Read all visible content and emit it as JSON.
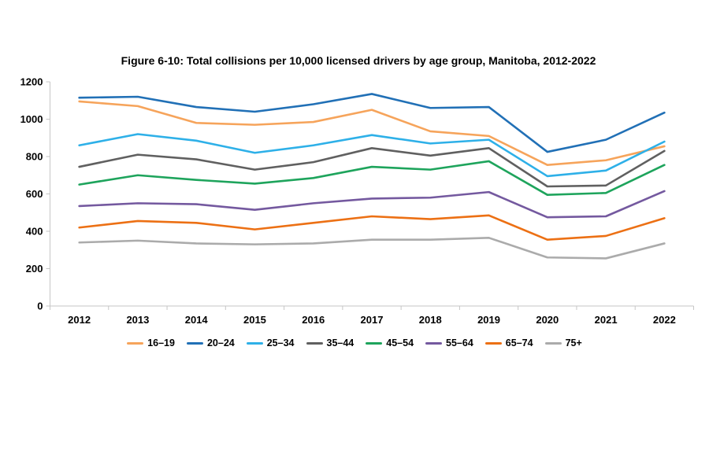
{
  "figure": {
    "title": "Figure 6-10: Total collisions per 10,000 licensed drivers by age group, Manitoba, 2012-2022"
  },
  "chart_data": {
    "type": "line",
    "title": "Figure 6-10: Total collisions per 10,000 licensed drivers by age group, Manitoba, 2012-2022",
    "x": [
      "2012",
      "2013",
      "2014",
      "2015",
      "2016",
      "2017",
      "2018",
      "2019",
      "2020",
      "2021",
      "2022"
    ],
    "xlabel": "",
    "ylabel": "",
    "ylim": [
      0,
      1200
    ],
    "ytick_step": 200,
    "ytick_labels": [
      "0",
      "200",
      "400",
      "600",
      "800",
      "1000",
      "1200"
    ],
    "grid": false,
    "legend_position": "bottom",
    "axis_color": "#c6c6c6",
    "text_color": "#000000",
    "background_color": "#ffffff",
    "series": [
      {
        "name": "16–19",
        "color": "#f6a45b",
        "values": [
          1095,
          1070,
          980,
          970,
          985,
          1050,
          935,
          910,
          755,
          780,
          855
        ]
      },
      {
        "name": "20–24",
        "color": "#2170b6",
        "values": [
          1115,
          1120,
          1065,
          1040,
          1080,
          1135,
          1060,
          1065,
          825,
          890,
          1035
        ]
      },
      {
        "name": "25–34",
        "color": "#2eb0e8",
        "values": [
          860,
          920,
          885,
          820,
          860,
          915,
          870,
          890,
          695,
          725,
          880
        ]
      },
      {
        "name": "35–44",
        "color": "#606060",
        "values": [
          745,
          810,
          785,
          730,
          770,
          845,
          805,
          845,
          640,
          645,
          830
        ]
      },
      {
        "name": "45–54",
        "color": "#1ea45c",
        "values": [
          650,
          700,
          675,
          655,
          685,
          745,
          730,
          775,
          595,
          605,
          755
        ]
      },
      {
        "name": "55–64",
        "color": "#74599f",
        "values": [
          535,
          550,
          545,
          515,
          550,
          575,
          580,
          610,
          475,
          480,
          615
        ]
      },
      {
        "name": "65–74",
        "color": "#ec7014",
        "values": [
          420,
          455,
          445,
          410,
          445,
          480,
          465,
          485,
          355,
          375,
          470
        ]
      },
      {
        "name": "75+",
        "color": "#ababab",
        "values": [
          340,
          350,
          335,
          330,
          335,
          355,
          355,
          365,
          260,
          255,
          335
        ]
      }
    ]
  }
}
